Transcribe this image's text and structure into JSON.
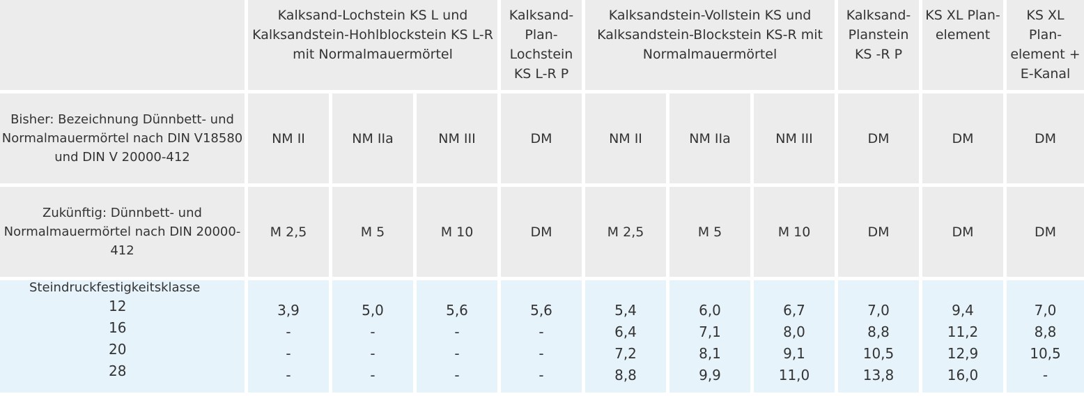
{
  "headers": [
    "Kalksand-Lochstein KS L und Kalksandstein-Hohlblockstein KS L-R mit Normalmauermörtel",
    "Kalksand-Plan-Lochstein KS L-R P",
    "Kalksandstein-Vollstein KS und Kalksandstein-Blockstein KS-R mit Normalmauermörtel",
    "Kalksand-Planstein KS -R P",
    "KS XL Plan-element",
    "KS XL Plan-element + E-Kanal"
  ],
  "rows": {
    "bisher": {
      "label": "Bisher: Bezeichnung Dünnbett- und Normalmauermörtel nach DIN V18580 und DIN V 20000-412",
      "values": [
        "NM II",
        "NM IIa",
        "NM III",
        "DM",
        "NM II",
        "NM IIa",
        "NM III",
        "DM",
        "DM",
        "DM"
      ]
    },
    "zukuenftig": {
      "label": "Zukünftig: Dünnbett- und Normalmauermörtel nach DIN 20000-412",
      "values": [
        "M 2,5",
        "M 5",
        "M 10",
        "DM",
        "M 2,5",
        "M 5",
        "M 10",
        "DM",
        "DM",
        "DM"
      ]
    },
    "steindruck": {
      "label": "Steindruckfestigkeitsklasse",
      "classes": [
        "12",
        "16",
        "20",
        "28"
      ],
      "columns": [
        [
          "3,9",
          "-",
          "-",
          "-"
        ],
        [
          "5,0",
          "-",
          "-",
          "-"
        ],
        [
          "5,6",
          "-",
          "-",
          "-"
        ],
        [
          "5,6",
          "-",
          "-",
          "-"
        ],
        [
          "5,4",
          "6,4",
          "7,2",
          "8,8"
        ],
        [
          "6,0",
          "7,1",
          "8,1",
          "9,9"
        ],
        [
          "6,7",
          "8,0",
          "9,1",
          "11,0"
        ],
        [
          "7,0",
          "8,8",
          "10,5",
          "13,8"
        ],
        [
          "9,4",
          "11,2",
          "12,9",
          "16,0"
        ],
        [
          "7,0",
          "8,8",
          "10,5",
          "-"
        ]
      ]
    }
  }
}
